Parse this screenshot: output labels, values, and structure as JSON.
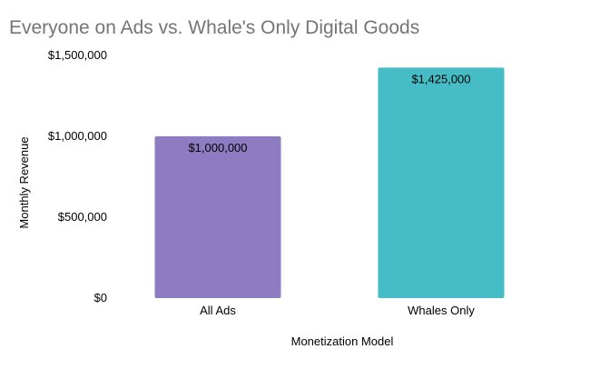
{
  "chart_data": {
    "type": "bar",
    "title": "Everyone on Ads vs. Whale's Only Digital Goods",
    "xlabel": "Monetization Model",
    "ylabel": "Monthly Revenue",
    "categories": [
      "All Ads",
      "Whales Only"
    ],
    "values": [
      1000000,
      1425000
    ],
    "value_labels": [
      "$1,000,000",
      "$1,425,000"
    ],
    "colors": [
      "#8e7cc3",
      "#46bdc6"
    ],
    "ylim": [
      0,
      1500000
    ],
    "yticks": [
      0,
      500000,
      1000000,
      1500000
    ],
    "ytick_labels": [
      "$0",
      "$500,000",
      "$1,000,000",
      "$1,500,000"
    ],
    "grid": false,
    "legend": "none",
    "title_color": "#757575",
    "text_color": "#000000"
  }
}
